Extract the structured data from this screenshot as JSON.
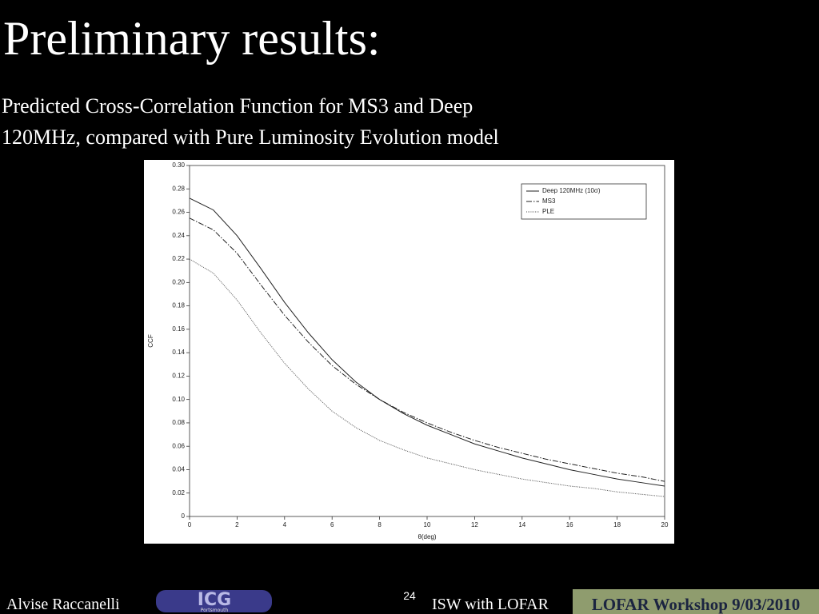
{
  "slide": {
    "title": "Preliminary results:",
    "subtitle_lines": [
      "Predicted Cross-Correlation Function for MS3 and Deep",
      "120MHz, compared with Pure Luminosity Evolution model"
    ],
    "footer": {
      "author": "Alvise Raccanelli",
      "logo": "ICG",
      "logo_sub": "Portsmouth",
      "page": "24",
      "talk": "ISW with LOFAR",
      "event": "LOFAR Workshop 9/03/2010"
    }
  },
  "chart_data": {
    "type": "line",
    "xlabel": "θ(deg)",
    "ylabel": "CCF",
    "x": [
      0,
      1,
      2,
      3,
      4,
      5,
      6,
      7,
      8,
      9,
      10,
      11,
      12,
      13,
      14,
      15,
      16,
      17,
      18,
      19,
      20
    ],
    "xlim": [
      0,
      20
    ],
    "xticks": [
      0,
      2,
      4,
      6,
      8,
      10,
      12,
      14,
      16,
      18,
      20
    ],
    "ylim": [
      0,
      0.3
    ],
    "yticks": [
      0,
      0.02,
      0.04,
      0.06,
      0.08,
      {
        "value": 0.1,
        "label": "0.10"
      },
      0.12,
      0.14,
      0.16,
      0.18,
      {
        "value": 0.2,
        "label": "0.20"
      },
      0.22,
      0.24,
      0.26,
      0.28,
      {
        "value": 0.3,
        "label": "0.30"
      }
    ],
    "legend": "upper right",
    "series": [
      {
        "name": "Deep 120MHz (10σ)",
        "color": "#222222",
        "style": "solid",
        "values": [
          0.272,
          0.262,
          0.24,
          0.212,
          0.183,
          0.157,
          0.134,
          0.115,
          0.1,
          0.088,
          0.078,
          0.07,
          0.062,
          0.056,
          0.05,
          0.045,
          0.04,
          0.036,
          0.032,
          0.029,
          0.026
        ]
      },
      {
        "name": "MS3",
        "color": "#222222",
        "style": "dashdot",
        "values": [
          0.255,
          0.245,
          0.225,
          0.198,
          0.172,
          0.149,
          0.129,
          0.113,
          0.1,
          0.089,
          0.08,
          0.072,
          0.065,
          0.059,
          0.054,
          0.049,
          0.045,
          0.041,
          0.037,
          0.034,
          0.03
        ]
      },
      {
        "name": "PLE",
        "color": "#555555",
        "style": "dotted",
        "values": [
          0.22,
          0.208,
          0.185,
          0.157,
          0.131,
          0.109,
          0.09,
          0.076,
          0.065,
          0.057,
          0.05,
          0.045,
          0.04,
          0.036,
          0.032,
          0.029,
          0.026,
          0.024,
          0.021,
          0.019,
          0.017
        ]
      }
    ]
  }
}
